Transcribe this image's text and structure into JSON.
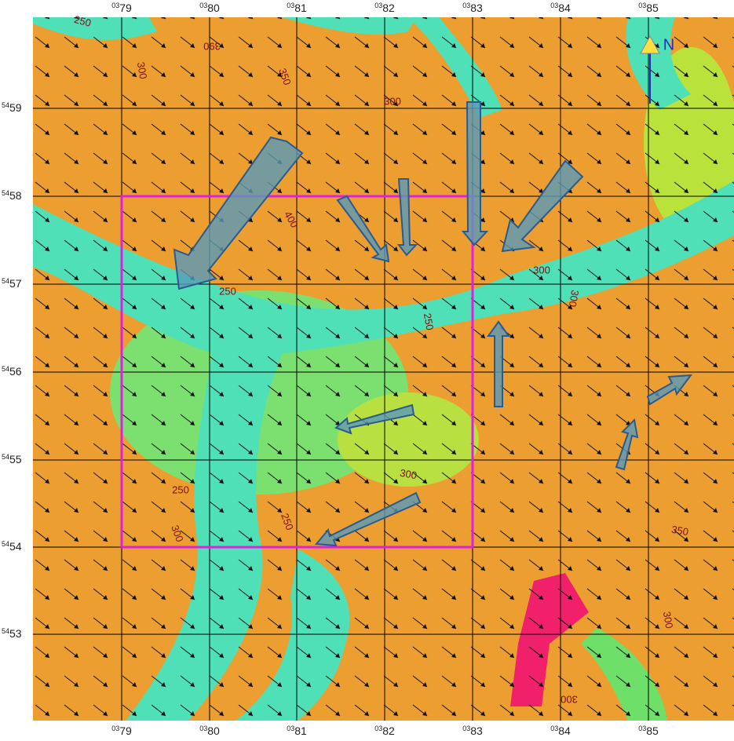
{
  "map": {
    "top_labels": [
      [
        "03",
        "79"
      ],
      [
        "03",
        "80"
      ],
      [
        "03",
        "81"
      ],
      [
        "03",
        "82"
      ],
      [
        "03",
        "83"
      ],
      [
        "03",
        "84"
      ],
      [
        "03",
        "85"
      ]
    ],
    "bottom_labels": [
      [
        "03",
        "79"
      ],
      [
        "03",
        "80"
      ],
      [
        "03",
        "81"
      ],
      [
        "03",
        "82"
      ],
      [
        "03",
        "83"
      ],
      [
        "03",
        "84"
      ],
      [
        "03",
        "85"
      ]
    ],
    "left_labels": [
      [
        "54",
        "59"
      ],
      [
        "54",
        "58"
      ],
      [
        "54",
        "57"
      ],
      [
        "54",
        "56"
      ],
      [
        "54",
        "55"
      ],
      [
        "54",
        "54"
      ],
      [
        "54",
        "53"
      ]
    ],
    "north": "N",
    "contour_labels": [
      "250",
      "300",
      "350",
      "390",
      "300",
      "250",
      "400",
      "300",
      "250",
      "300",
      "250",
      "300",
      "250",
      "350",
      "300",
      "300",
      "300"
    ]
  }
}
